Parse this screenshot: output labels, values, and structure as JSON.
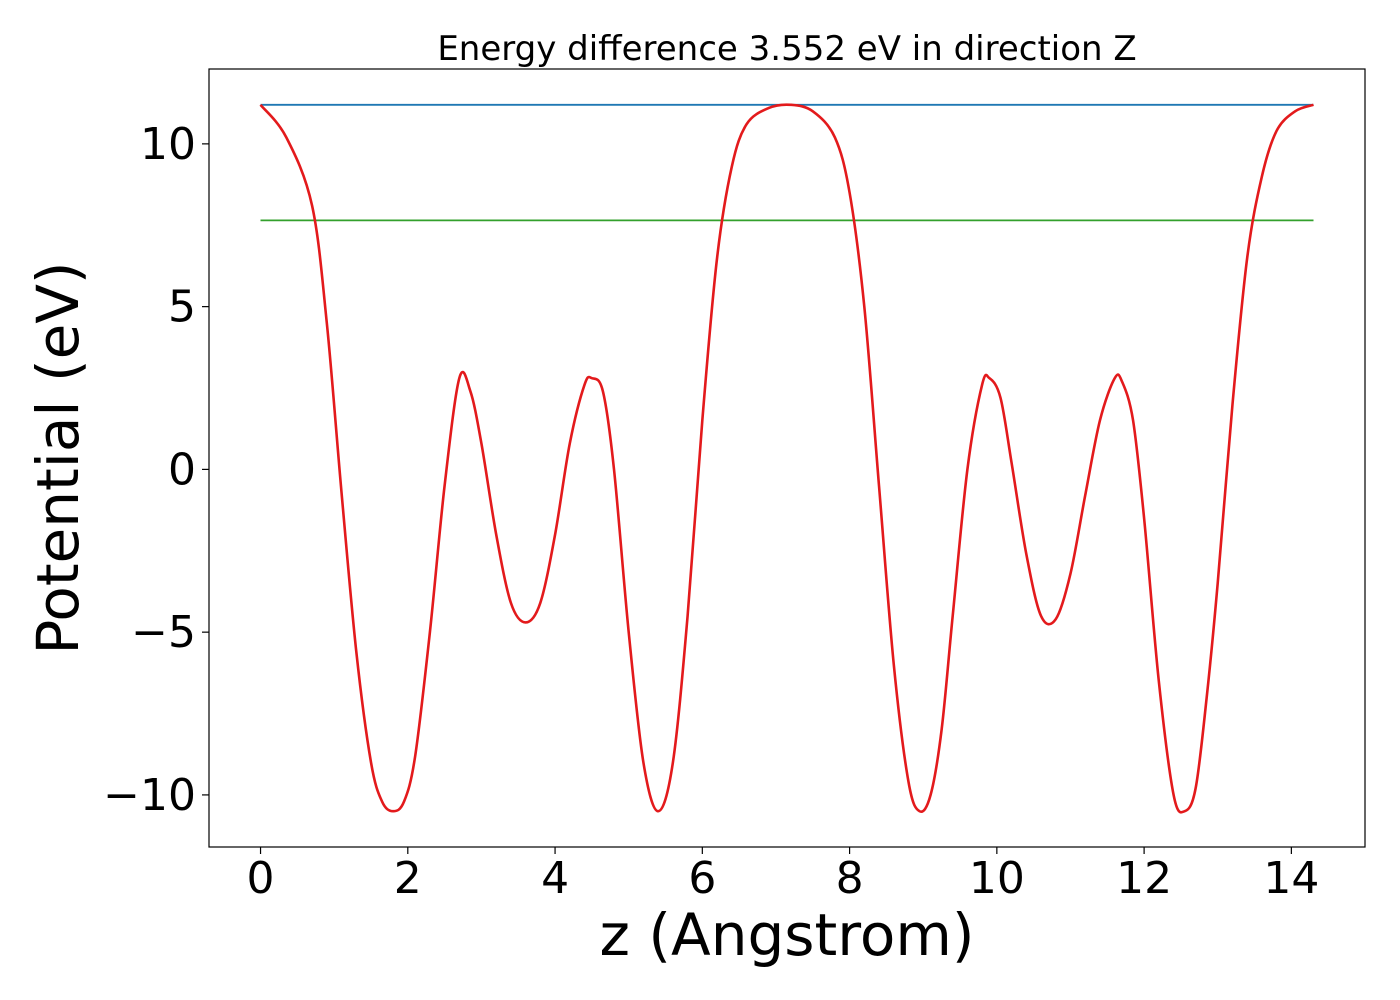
{
  "chart_data": {
    "type": "line",
    "title": "Energy difference 3.552 eV in direction Z",
    "xlabel": "z (Angstrom)",
    "ylabel": "Potential (eV)",
    "xlim": [
      -0.7,
      15.0
    ],
    "ylim": [
      -11.6,
      12.3
    ],
    "xticks": [
      0,
      2,
      4,
      6,
      8,
      10,
      12,
      14
    ],
    "xtick_labels": [
      "0",
      "2",
      "4",
      "6",
      "8",
      "10",
      "12",
      "14"
    ],
    "yticks": [
      -10,
      -5,
      0,
      5,
      10
    ],
    "ytick_labels": [
      "−10",
      "−5",
      "0",
      "5",
      "10"
    ],
    "grid": false,
    "legend": "none",
    "series": [
      {
        "color": "#e31a1c",
        "x": [
          0.0,
          0.35,
          0.7,
          0.9,
          1.1,
          1.3,
          1.5,
          1.65,
          1.8,
          1.95,
          2.1,
          2.3,
          2.5,
          2.7,
          2.85,
          3.0,
          3.2,
          3.4,
          3.6,
          3.8,
          4.0,
          4.2,
          4.4,
          4.5,
          4.65,
          4.8,
          5.0,
          5.2,
          5.4,
          5.6,
          5.8,
          6.0,
          6.2,
          6.4,
          6.6,
          6.9,
          7.2,
          7.5,
          7.8,
          8.0,
          8.2,
          8.4,
          8.6,
          8.8,
          8.95,
          9.1,
          9.25,
          9.4,
          9.6,
          9.8,
          9.9,
          10.05,
          10.2,
          10.4,
          10.6,
          10.8,
          11.0,
          11.2,
          11.4,
          11.6,
          11.7,
          11.85,
          12.0,
          12.2,
          12.4,
          12.55,
          12.7,
          12.85,
          13.0,
          13.2,
          13.4,
          13.6,
          13.8,
          14.05,
          14.3
        ],
        "values": [
          11.2,
          10.2,
          8.1,
          4.5,
          -0.7,
          -5.6,
          -9.0,
          -10.2,
          -10.5,
          -10.2,
          -8.8,
          -5.0,
          -0.5,
          2.8,
          2.4,
          0.8,
          -2.0,
          -4.1,
          -4.7,
          -4.1,
          -2.0,
          0.8,
          2.6,
          2.8,
          2.4,
          0.0,
          -5.0,
          -9.0,
          -10.5,
          -9.0,
          -4.5,
          1.5,
          6.5,
          9.3,
          10.6,
          11.1,
          11.2,
          11.0,
          10.2,
          8.5,
          5.0,
          -0.5,
          -6.0,
          -9.6,
          -10.5,
          -10.0,
          -8.0,
          -4.5,
          0.0,
          2.6,
          2.8,
          2.2,
          0.2,
          -2.6,
          -4.5,
          -4.6,
          -3.2,
          -0.8,
          1.5,
          2.8,
          2.7,
          1.5,
          -1.5,
          -6.5,
          -10.0,
          -10.5,
          -9.8,
          -7.0,
          -3.5,
          2.0,
          6.5,
          9.0,
          10.4,
          11.0,
          11.2
        ]
      },
      {
        "color": "#1f78b4",
        "x": [
          0.0,
          14.3
        ],
        "values": [
          11.2,
          11.2
        ]
      },
      {
        "color": "#33a02c",
        "x": [
          0.0,
          14.3
        ],
        "values": [
          7.65,
          7.65
        ]
      }
    ]
  }
}
